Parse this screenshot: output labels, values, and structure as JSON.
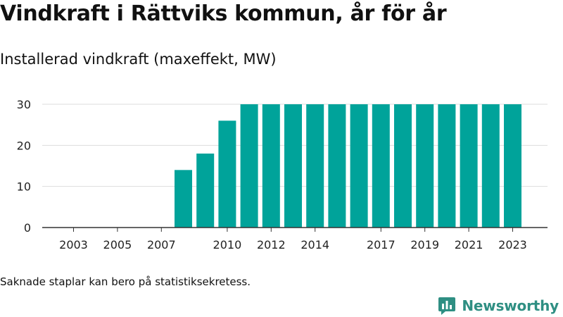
{
  "title": "Vindkraft i Rättviks kommun, år för år",
  "subtitle": "Installerad vindkraft (maxeffekt, MW)",
  "note": "Saknade staplar kan bero på statistiksekretess.",
  "brand": {
    "name": "Newsworthy",
    "logo_icon": "newsworthy-logo-icon"
  },
  "colors": {
    "bar": "#00a39a",
    "grid": "#dddddd",
    "axis": "#333333",
    "brand": "#2f8f83"
  },
  "chart_data": {
    "type": "bar",
    "title": "Vindkraft i Rättviks kommun, år för år",
    "subtitle": "Installerad vindkraft (maxeffekt, MW)",
    "categories": [
      "2008",
      "2009",
      "2010",
      "2011",
      "2012",
      "2013",
      "2014",
      "2015",
      "2016",
      "2017",
      "2018",
      "2019",
      "2020",
      "2021",
      "2022",
      "2023"
    ],
    "values": [
      14,
      18,
      26,
      30,
      30,
      30,
      30,
      30,
      30,
      30,
      30,
      30,
      30,
      30,
      30,
      30
    ],
    "x_range": [
      2002,
      2024
    ],
    "x_ticks": [
      "2003",
      "2005",
      "2007",
      "2010",
      "2012",
      "2014",
      "2017",
      "2019",
      "2021",
      "2023"
    ],
    "ylim": [
      0,
      30
    ],
    "y_ticks": [
      0,
      10,
      20,
      30
    ],
    "grid": true,
    "legend": "none"
  }
}
